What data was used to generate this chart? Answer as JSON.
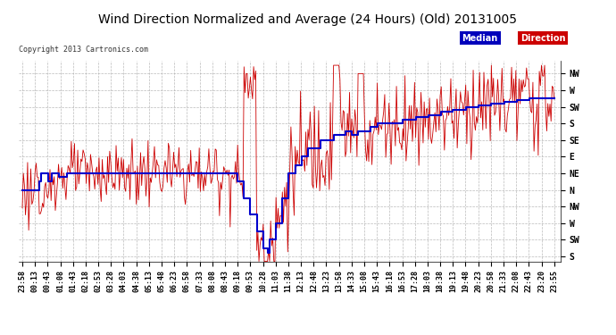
{
  "title": "Wind Direction Normalized and Average (24 Hours) (Old) 20131005",
  "copyright": "Copyright 2013 Cartronics.com",
  "background_color": "#ffffff",
  "plot_bg_color": "#ffffff",
  "grid_color": "#aaaaaa",
  "directions": [
    "NW",
    "W",
    "SW",
    "S",
    "SE",
    "E",
    "NE",
    "N",
    "NW",
    "W",
    "SW",
    "S"
  ],
  "direction_values": [
    11,
    10,
    9,
    8,
    7,
    6,
    5,
    4,
    3,
    2,
    1,
    0
  ],
  "x_labels": [
    "23:58",
    "00:13",
    "00:43",
    "01:08",
    "01:43",
    "02:18",
    "02:53",
    "03:28",
    "04:03",
    "04:38",
    "05:13",
    "05:48",
    "06:23",
    "06:58",
    "07:33",
    "08:08",
    "08:43",
    "09:18",
    "09:53",
    "10:28",
    "11:03",
    "11:38",
    "12:13",
    "12:48",
    "13:23",
    "13:58",
    "14:33",
    "15:08",
    "15:43",
    "16:18",
    "16:53",
    "17:28",
    "18:03",
    "18:38",
    "19:13",
    "19:48",
    "20:23",
    "20:58",
    "21:33",
    "22:08",
    "22:43",
    "23:20",
    "23:55"
  ],
  "ylim": [
    -0.3,
    11.8
  ],
  "title_fontsize": 10,
  "tick_fontsize": 6,
  "median_color": "#0000cc",
  "direction_color": "#cc0000",
  "median_bg": "#0000bb",
  "direction_bg": "#cc0000"
}
